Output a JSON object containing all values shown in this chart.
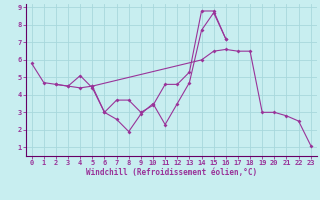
{
  "xlabel": "Windchill (Refroidissement éolien,°C)",
  "bg_color": "#c8eef0",
  "grid_color": "#a8d8dc",
  "line_color": "#993399",
  "axis_color": "#660066",
  "xlim": [
    -0.5,
    23.5
  ],
  "ylim": [
    0.5,
    9.2
  ],
  "xticks": [
    0,
    1,
    2,
    3,
    4,
    5,
    6,
    7,
    8,
    9,
    10,
    11,
    12,
    13,
    14,
    15,
    16,
    17,
    18,
    19,
    20,
    21,
    22,
    23
  ],
  "yticks": [
    1,
    2,
    3,
    4,
    5,
    6,
    7,
    8,
    9
  ],
  "series": [
    {
      "x": [
        0,
        1,
        2,
        3,
        4,
        5,
        14,
        15,
        16,
        17,
        18,
        19,
        20,
        21,
        22,
        23
      ],
      "y": [
        5.8,
        4.7,
        4.6,
        4.5,
        4.4,
        4.5,
        6.0,
        6.5,
        6.6,
        6.5,
        6.5,
        3.0,
        3.0,
        2.8,
        2.5,
        1.1
      ]
    },
    {
      "x": [
        2,
        3,
        4,
        5,
        6,
        7,
        8,
        9,
        10,
        11,
        12,
        13,
        14,
        15,
        16
      ],
      "y": [
        4.6,
        4.5,
        5.1,
        4.4,
        3.0,
        2.6,
        1.9,
        2.9,
        3.5,
        2.3,
        3.5,
        4.7,
        7.7,
        8.7,
        7.2
      ]
    },
    {
      "x": [
        5,
        6,
        7,
        8,
        9,
        10,
        11,
        12,
        13,
        14,
        15,
        16
      ],
      "y": [
        4.5,
        3.0,
        3.7,
        3.7,
        3.0,
        3.4,
        4.6,
        4.6,
        5.3,
        8.8,
        8.8,
        7.2
      ]
    }
  ],
  "tick_fontsize": 5.0,
  "xlabel_fontsize": 5.5
}
